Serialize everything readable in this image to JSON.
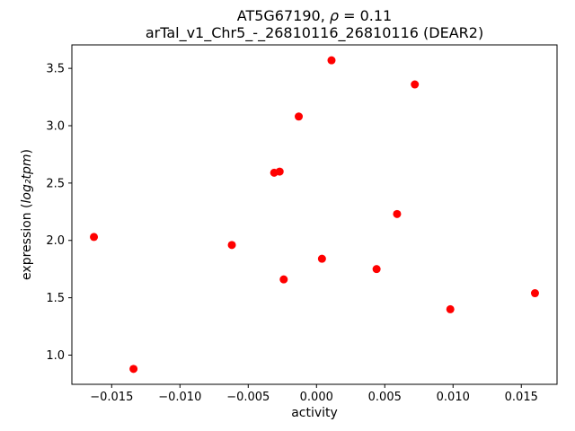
{
  "chart_data": {
    "type": "scatter",
    "title": {
      "prefix": "AT5G67190, ",
      "rho": "ρ",
      "suffix": " = 0.11"
    },
    "subtitle": "arTal_v1_Chr5_-_26810116_26810116 (DEAR2)",
    "xlabel": "activity",
    "ylabel": {
      "prefix": "expression (",
      "math": "log₂tpm",
      "suffix": ")"
    },
    "legend": "none",
    "grid": false,
    "marker_color": "#ff0000",
    "axis_color": "#000000",
    "xlim": [
      -0.017915,
      0.017615
    ],
    "ylim": [
      0.7455,
      3.7045
    ],
    "xticks": {
      "values": [
        -0.015,
        -0.01,
        -0.005,
        0.0,
        0.005,
        0.01,
        0.015
      ],
      "labels": [
        "−0.015",
        "−0.010",
        "−0.005",
        "0.000",
        "0.005",
        "0.010",
        "0.015"
      ]
    },
    "yticks": {
      "values": [
        1.0,
        1.5,
        2.0,
        2.5,
        3.0,
        3.5
      ],
      "labels": [
        "1.0",
        "1.5",
        "2.0",
        "2.5",
        "3.0",
        "3.5"
      ]
    },
    "points": [
      [
        -0.0163,
        2.03
      ],
      [
        -0.0134,
        0.88
      ],
      [
        -0.0062,
        1.96
      ],
      [
        -0.0031,
        2.59
      ],
      [
        -0.0027,
        2.6
      ],
      [
        -0.0024,
        1.66
      ],
      [
        -0.0013,
        3.08
      ],
      [
        0.0004,
        1.84
      ],
      [
        0.0011,
        3.57
      ],
      [
        0.0044,
        1.75
      ],
      [
        0.0059,
        2.23
      ],
      [
        0.0072,
        3.36
      ],
      [
        0.0098,
        1.4
      ],
      [
        0.016,
        1.54
      ]
    ]
  }
}
